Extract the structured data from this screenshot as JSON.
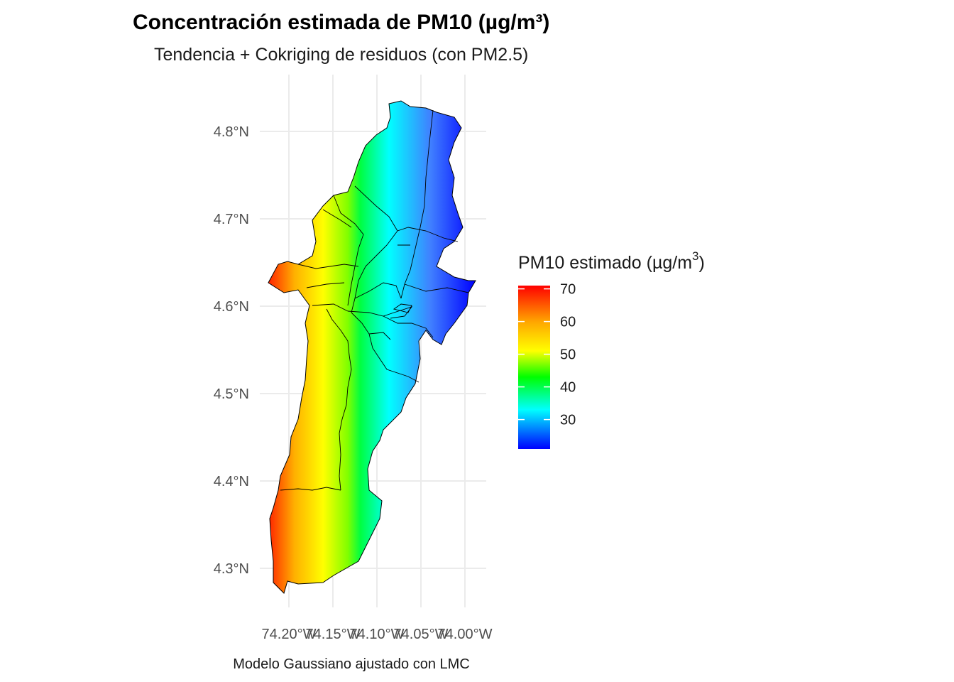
{
  "title": "Concentración estimada de PM10 (µg/m³)",
  "subtitle": "Tendencia + Cokriging de residuos (con PM2.5)",
  "caption": "Modelo Gaussiano ajustado con LMC",
  "legend": {
    "title_text": "PM10 estimado (µg/m",
    "title_sup": "3",
    "title_close": ")",
    "labels": [
      "70",
      "60",
      "50",
      "40",
      "30"
    ],
    "values": [
      70,
      60,
      50,
      40,
      30
    ],
    "range": [
      21,
      71
    ],
    "colors": [
      "#ff0000",
      "#ffa500",
      "#ffff00",
      "#00ff00",
      "#00ffff",
      "#0000ff"
    ]
  },
  "axes": {
    "y_ticks": [
      "4.8°N",
      "4.7°N",
      "4.6°N",
      "4.5°N",
      "4.4°N",
      "4.3°N"
    ],
    "y_values": [
      4.8,
      4.7,
      4.6,
      4.5,
      4.4,
      4.3
    ],
    "x_ticks": [
      "74.20°W",
      "74.15°W",
      "74.10°W",
      "74.05°W",
      "74.00°W"
    ],
    "x_values": [
      -74.2,
      -74.15,
      -74.1,
      -74.05,
      -74.0
    ]
  }
}
